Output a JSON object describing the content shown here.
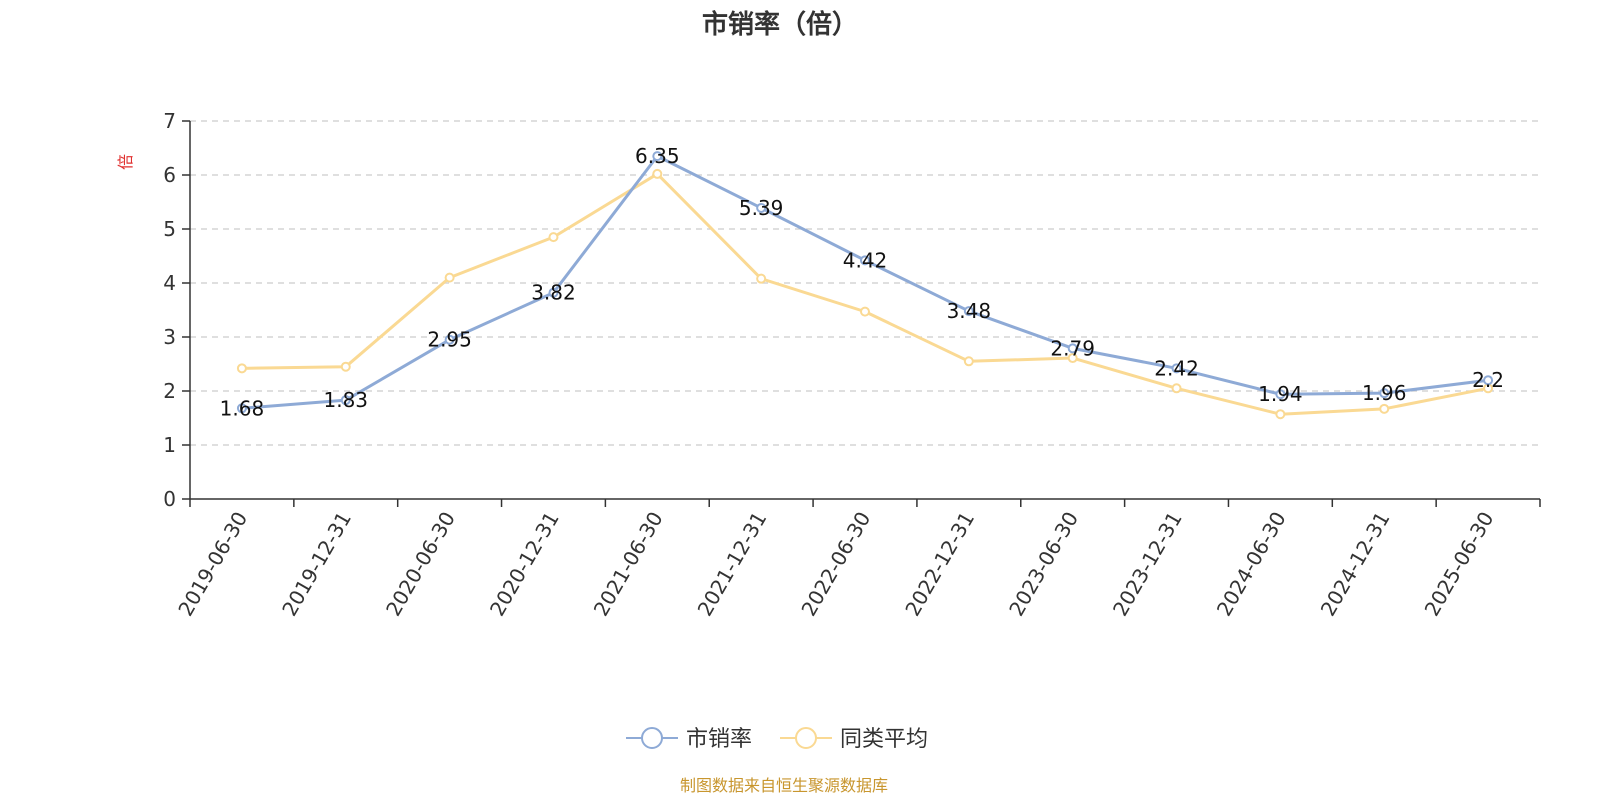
{
  "chart_data": {
    "type": "line",
    "title": "市销率（倍）",
    "ylabel": "倍",
    "ylim": [
      0,
      7
    ],
    "yticks": [
      0,
      1,
      2,
      3,
      4,
      5,
      6,
      7
    ],
    "grid": true,
    "legend_position": "bottom-center",
    "categories": [
      "2019-06-30",
      "2019-12-31",
      "2020-06-30",
      "2020-12-31",
      "2021-06-30",
      "2021-12-31",
      "2022-06-30",
      "2022-12-31",
      "2023-06-30",
      "2023-12-31",
      "2024-06-30",
      "2024-12-31",
      "2025-06-30"
    ],
    "series": [
      {
        "name": "市销率",
        "color": "#8eaad6",
        "show_labels": true,
        "values": [
          1.68,
          1.83,
          2.95,
          3.82,
          6.35,
          5.39,
          4.42,
          3.48,
          2.79,
          2.42,
          1.94,
          1.96,
          2.2
        ]
      },
      {
        "name": "同类平均",
        "color": "#fad993",
        "show_labels": false,
        "values": [
          2.42,
          2.45,
          4.1,
          4.85,
          6.02,
          4.08,
          3.47,
          2.55,
          2.61,
          2.05,
          1.57,
          1.67,
          2.05
        ]
      }
    ],
    "source_note": "制图数据来自恒生聚源数据库",
    "colors": {
      "axis": "#333333",
      "grid": "#cccccc",
      "ylabel": "#e0302f",
      "source": "#c8962e"
    }
  }
}
